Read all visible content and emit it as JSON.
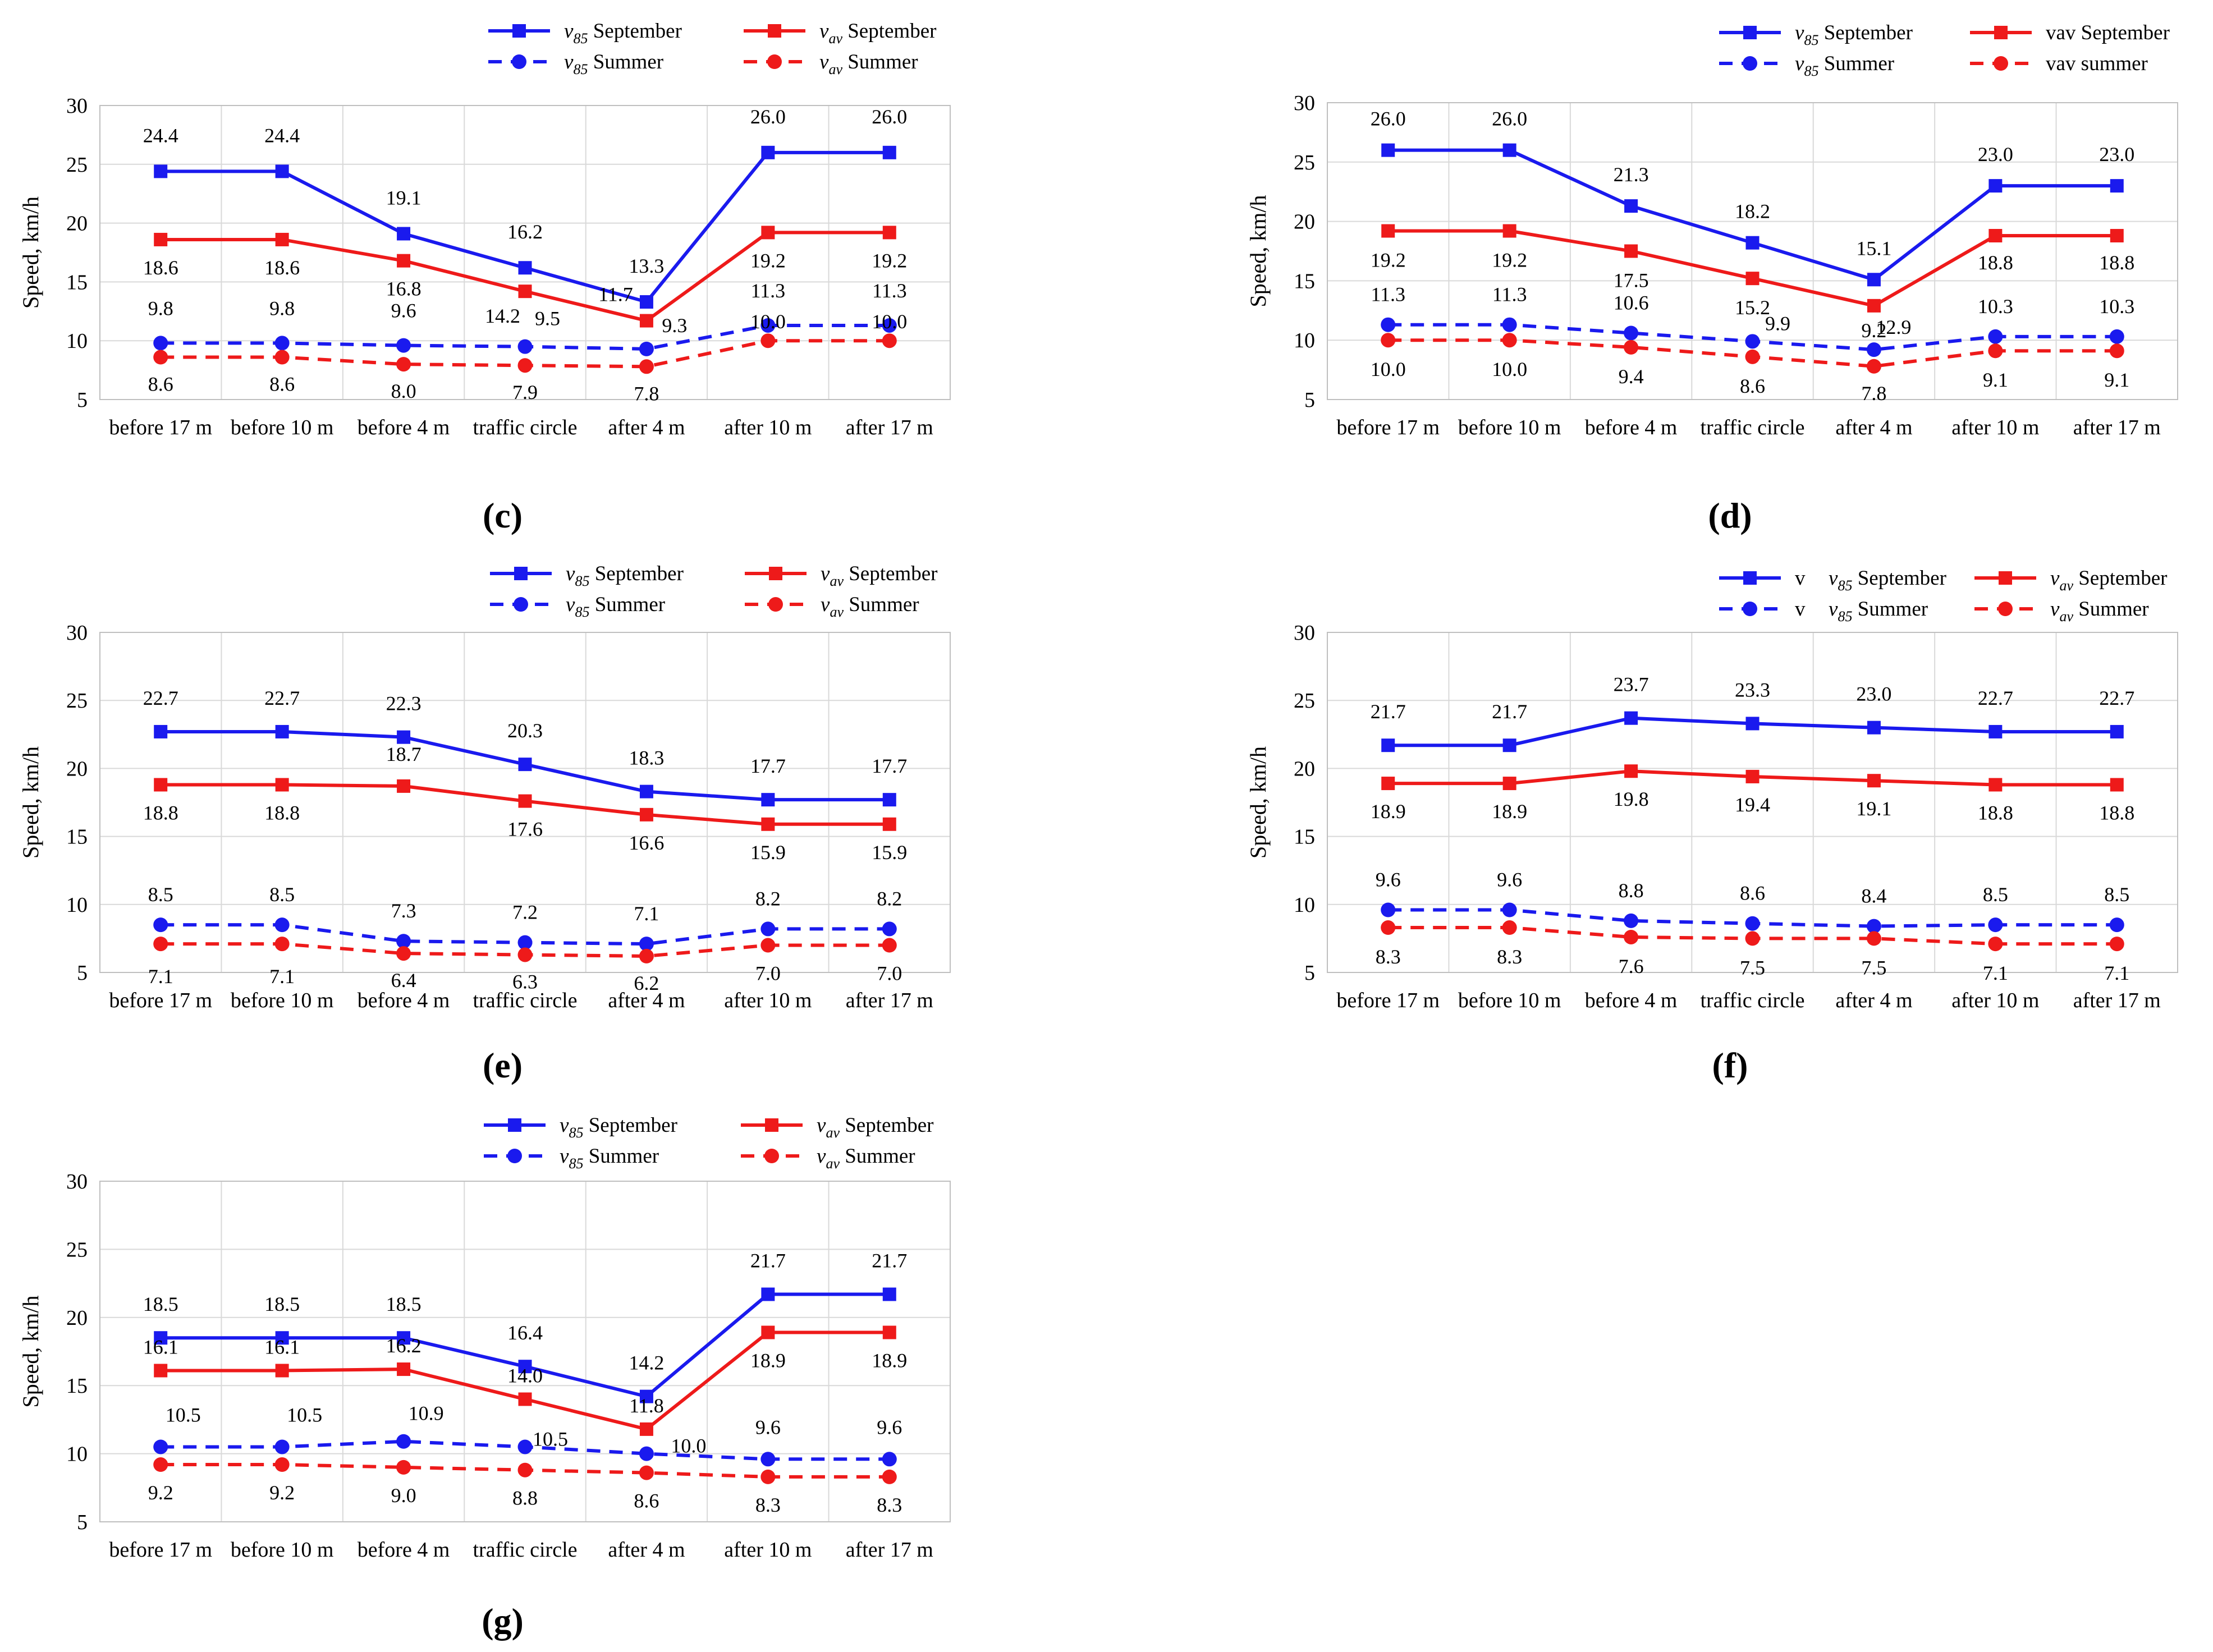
{
  "colors": {
    "blue": "#1a1aee",
    "red": "#ee1a1a",
    "grid": "#d9d9d9",
    "axis": "#bfbfbf"
  },
  "chart_data": [
    {
      "id": "c",
      "type": "line",
      "caption": "c",
      "ylabel": "Speed, km/h",
      "ylim": [
        5,
        30
      ],
      "yticks": [
        5,
        10,
        15,
        20,
        25,
        30
      ],
      "categories": [
        "before 17 m",
        "before 10 m",
        "before 4 m",
        "traffic circle",
        "after 4 m",
        "after 10 m",
        "after 17 m"
      ],
      "series": [
        {
          "var": "v",
          "sub": "85",
          "name": "September",
          "legend_prefix": "",
          "values": [
            24.4,
            24.4,
            19.1,
            16.2,
            13.3,
            26.0,
            26.0
          ],
          "labels": [
            "24.4",
            "24.4",
            "19.1",
            "16.2",
            "13.3",
            "26.0",
            "26.0"
          ]
        },
        {
          "var": "v",
          "sub": "av",
          "name": "September",
          "legend_prefix": "",
          "values": [
            18.6,
            18.6,
            16.8,
            14.2,
            11.7,
            19.2,
            19.2
          ],
          "labels": [
            "18.6",
            "18.6",
            "16.8",
            "14.2",
            "11.7",
            "19.2",
            "19.2"
          ]
        },
        {
          "var": "v",
          "sub": "85",
          "name": "Summer",
          "legend_prefix": "",
          "values": [
            9.8,
            9.8,
            9.6,
            9.5,
            9.3,
            11.3,
            11.3
          ],
          "labels": [
            "9.8",
            "9.8",
            "9.6",
            "9.5",
            "9.3",
            "11.3",
            "11.3"
          ]
        },
        {
          "var": "v",
          "sub": "av",
          "name": "Summer",
          "legend_prefix": "",
          "values": [
            8.6,
            8.6,
            8.0,
            7.9,
            7.8,
            10.0,
            10.0
          ],
          "labels": [
            "8.6",
            "8.6",
            "8.0",
            "7.9",
            "7.8",
            "10.0",
            "10.0"
          ]
        }
      ]
    },
    {
      "id": "d",
      "type": "line",
      "caption": "d",
      "ylabel": "Speed, km/h",
      "ylim": [
        5,
        30
      ],
      "yticks": [
        5,
        10,
        15,
        20,
        25,
        30
      ],
      "categories": [
        "before 17 m",
        "before 10 m",
        "before 4 m",
        "traffic circle",
        "after 4 m",
        "after 10 m",
        "after 17 m"
      ],
      "series": [
        {
          "var": "v",
          "sub": "85",
          "name": "September",
          "legend_prefix": "",
          "values": [
            26.0,
            26.0,
            21.3,
            18.2,
            15.1,
            23.0,
            23.0
          ],
          "labels": [
            "26.0",
            "26.0",
            "21.3",
            "18.2",
            "15.1",
            "23.0",
            "23.0"
          ]
        },
        {
          "var": "",
          "sub": "",
          "name": "vav September",
          "legend_prefix": "",
          "values": [
            19.2,
            19.2,
            17.5,
            15.2,
            12.9,
            18.8,
            18.8
          ],
          "labels": [
            "19.2",
            "19.2",
            "17.5",
            "15.2",
            "12.9",
            "18.8",
            "18.8"
          ]
        },
        {
          "var": "v",
          "sub": "85",
          "name": "Summer",
          "legend_prefix": "",
          "values": [
            11.3,
            11.3,
            10.6,
            9.9,
            9.2,
            10.3,
            10.3
          ],
          "labels": [
            "11.3",
            "11.3",
            "10.6",
            "9.9",
            "9.2",
            "10.3",
            "10.3"
          ]
        },
        {
          "var": "",
          "sub": "",
          "name": "vav summer",
          "legend_prefix": "",
          "values": [
            10.0,
            10.0,
            9.4,
            8.6,
            7.8,
            9.1,
            9.1
          ],
          "labels": [
            "10.0",
            "10.0",
            "9.4",
            "8.6",
            "7.8",
            "9.1",
            "9.1"
          ]
        }
      ]
    },
    {
      "id": "e",
      "type": "line",
      "caption": "e",
      "ylabel": "Speed, km/h",
      "ylim": [
        5,
        30
      ],
      "yticks": [
        5,
        10,
        15,
        20,
        25,
        30
      ],
      "categories": [
        "before 17 m",
        "before 10 m",
        "before 4 m",
        "traffic circle",
        "after 4 m",
        "after 10 m",
        "after 17 m"
      ],
      "series": [
        {
          "var": "v",
          "sub": "85",
          "name": "September",
          "legend_prefix": "",
          "values": [
            22.7,
            22.7,
            22.3,
            20.3,
            18.3,
            17.7,
            17.7
          ],
          "labels": [
            "22.7",
            "22.7",
            "22.3",
            "20.3",
            "18.3",
            "17.7",
            "17.7"
          ]
        },
        {
          "var": "v",
          "sub": "av",
          "name": "September",
          "legend_prefix": "",
          "values": [
            18.8,
            18.8,
            18.7,
            17.6,
            16.6,
            15.9,
            15.9
          ],
          "labels": [
            "18.8",
            "18.8",
            "18.7",
            "17.6",
            "16.6",
            "15.9",
            "15.9"
          ]
        },
        {
          "var": "v",
          "sub": "85",
          "name": "Summer",
          "legend_prefix": "",
          "values": [
            8.5,
            8.5,
            7.3,
            7.2,
            7.1,
            8.2,
            8.2
          ],
          "labels": [
            "8.5",
            "8.5",
            "7.3",
            "7.2",
            "7.1",
            "8.2",
            "8.2"
          ]
        },
        {
          "var": "v",
          "sub": "av",
          "name": "Summer",
          "legend_prefix": "",
          "values": [
            7.1,
            7.1,
            6.4,
            6.3,
            6.2,
            7.0,
            7.0
          ],
          "labels": [
            "7.1",
            "7.1",
            "6.4",
            "6.3",
            "6.2",
            "7.0",
            "7.0"
          ]
        }
      ]
    },
    {
      "id": "f",
      "type": "line",
      "caption": "f",
      "ylabel": "Speed, km/h",
      "ylim": [
        5,
        30
      ],
      "yticks": [
        5,
        10,
        15,
        20,
        25,
        30
      ],
      "categories": [
        "before 17 m",
        "before 10 m",
        "before 4 m",
        "traffic circle",
        "after 4 m",
        "after 10 m",
        "after 17 m"
      ],
      "series": [
        {
          "var": "v",
          "sub": "85",
          "name": "September",
          "legend_prefix": "v",
          "values": [
            21.7,
            21.7,
            23.7,
            23.3,
            23.0,
            22.7,
            22.7
          ],
          "labels": [
            "21.7",
            "21.7",
            "23.7",
            "23.3",
            "23.0",
            "22.7",
            "22.7"
          ]
        },
        {
          "var": "v",
          "sub": "av",
          "name": "September",
          "legend_prefix": "",
          "values": [
            18.9,
            18.9,
            19.8,
            19.4,
            19.1,
            18.8,
            18.8
          ],
          "labels": [
            "18.9",
            "18.9",
            "19.8",
            "19.4",
            "19.1",
            "18.8",
            "18.8"
          ]
        },
        {
          "var": "v",
          "sub": "85",
          "name": "Summer",
          "legend_prefix": "v",
          "values": [
            9.6,
            9.6,
            8.8,
            8.6,
            8.4,
            8.5,
            8.5
          ],
          "labels": [
            "9.6",
            "9.6",
            "8.8",
            "8.6",
            "8.4",
            "8.5",
            "8.5"
          ]
        },
        {
          "var": "v",
          "sub": "av",
          "name": "Summer",
          "legend_prefix": "",
          "values": [
            8.3,
            8.3,
            7.6,
            7.5,
            7.5,
            7.1,
            7.1
          ],
          "labels": [
            "8.3",
            "8.3",
            "7.6",
            "7.5",
            "7.5",
            "7.1",
            "7.1"
          ]
        }
      ]
    },
    {
      "id": "g",
      "type": "line",
      "caption": "g",
      "ylabel": "Speed, km/h",
      "ylim": [
        5,
        30
      ],
      "yticks": [
        5,
        10,
        15,
        20,
        25,
        30
      ],
      "categories": [
        "before 17 m",
        "before 10 m",
        "before 4 m",
        "traffic circle",
        "after 4 m",
        "after 10 m",
        "after 17 m"
      ],
      "series": [
        {
          "var": "v",
          "sub": "85",
          "name": "September",
          "legend_prefix": "",
          "values": [
            18.5,
            18.5,
            18.5,
            16.4,
            14.2,
            21.7,
            21.7
          ],
          "labels": [
            "18.5",
            "18.5",
            "18.5",
            "16.4",
            "14.2",
            "21.7",
            "21.7"
          ]
        },
        {
          "var": "v",
          "sub": "av",
          "name": "September",
          "legend_prefix": "",
          "values": [
            16.1,
            16.1,
            16.2,
            14.0,
            11.8,
            18.9,
            18.9
          ],
          "labels": [
            "16.1",
            "16.1",
            "16.2",
            "14.0",
            "11.8",
            "18.9",
            "18.9"
          ]
        },
        {
          "var": "v",
          "sub": "85",
          "name": "Summer",
          "legend_prefix": "",
          "values": [
            10.5,
            10.5,
            10.9,
            10.5,
            10.0,
            9.6,
            9.6
          ],
          "labels": [
            "10.5",
            "10.5",
            "10.9",
            "10.5",
            "10.0",
            "9.6",
            "9.6"
          ]
        },
        {
          "var": "v",
          "sub": "av",
          "name": "Summer",
          "legend_prefix": "",
          "values": [
            9.2,
            9.2,
            9.0,
            8.8,
            8.6,
            8.3,
            8.3
          ],
          "labels": [
            "9.2",
            "9.2",
            "9.0",
            "8.8",
            "8.6",
            "8.3",
            "8.3"
          ]
        }
      ]
    }
  ]
}
